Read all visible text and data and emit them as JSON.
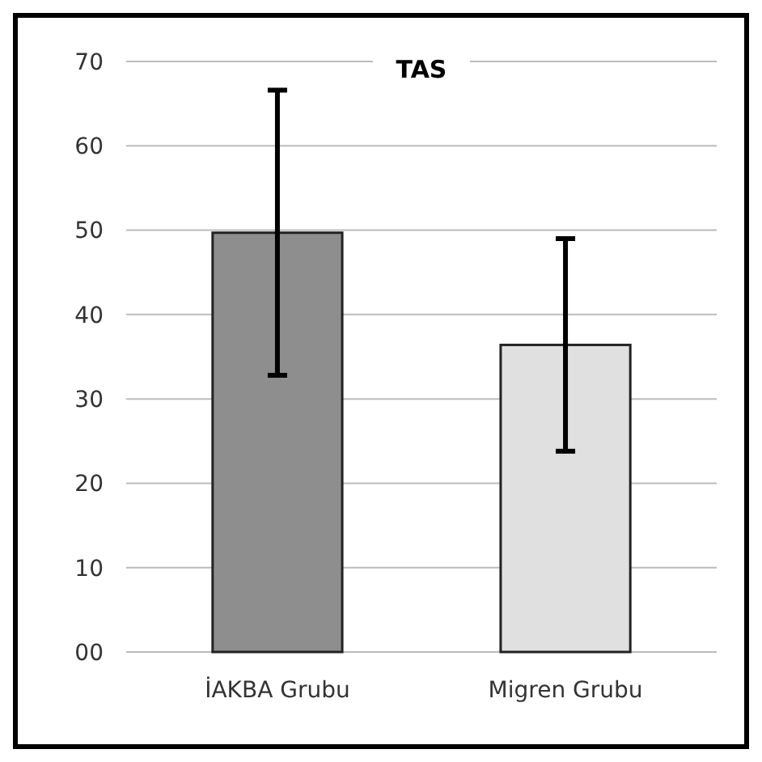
{
  "chart_data": {
    "type": "bar",
    "title": "TAS",
    "categories": [
      "İAKBA Grubu",
      "Migren Grubu"
    ],
    "values": [
      49.7,
      36.4
    ],
    "colors": [
      "#8e8e8e",
      "#e0e0e0"
    ],
    "errors": [
      16.9,
      12.6
    ],
    "ylim": [
      0,
      70
    ],
    "yticks": [
      {
        "value": 0,
        "label": "00"
      },
      10,
      20,
      30,
      40,
      50,
      60,
      70
    ],
    "grid": "y"
  }
}
